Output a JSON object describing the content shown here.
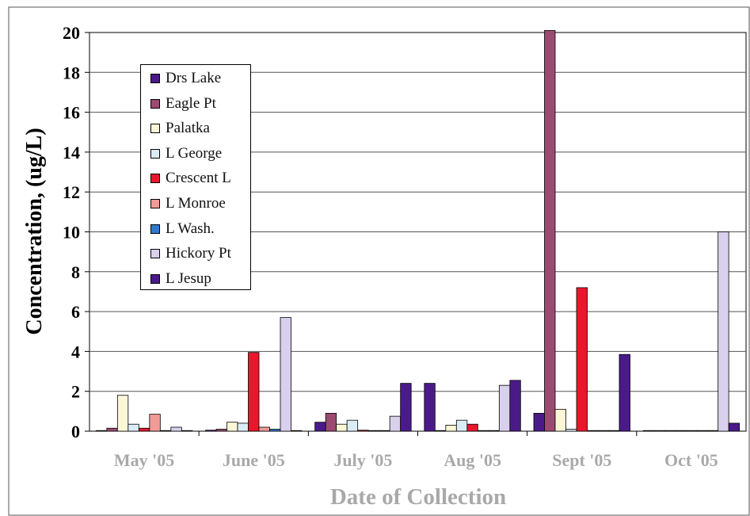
{
  "chart_data": {
    "type": "bar",
    "title": "",
    "xlabel": "Date of Collection",
    "ylabel": "Concentration, (ug/L)",
    "ylim": [
      0,
      20
    ],
    "yticks": [
      "0",
      "2",
      "4",
      "6",
      "8",
      "10",
      "12",
      "14",
      "16",
      "18",
      "20"
    ],
    "grid": true,
    "legend_position": "top-left",
    "categories": [
      "May '05",
      "June '05",
      "July '05",
      "Aug '05",
      "Sept '05",
      "Oct '05"
    ],
    "series": [
      {
        "name": "Drs Lake",
        "color": "#4b1a8a",
        "values": [
          0,
          0.05,
          0.45,
          2.4,
          0.9,
          0
        ]
      },
      {
        "name": "Eagle Pt",
        "color": "#9c4a72",
        "values": [
          0.15,
          0.1,
          0.9,
          0,
          20.1,
          0
        ]
      },
      {
        "name": "Palatka",
        "color": "#fbf6d5",
        "values": [
          1.8,
          0.45,
          0.35,
          0.3,
          1.1,
          0
        ]
      },
      {
        "name": "L George",
        "color": "#dcecf7",
        "values": [
          0.35,
          0.4,
          0.55,
          0.55,
          0.1,
          0
        ]
      },
      {
        "name": "Crescent L",
        "color": "#e8182c",
        "values": [
          0.15,
          3.95,
          0.05,
          0.35,
          7.2,
          0
        ]
      },
      {
        "name": "L Monroe",
        "color": "#f29a96",
        "values": [
          0.85,
          0.2,
          0,
          0,
          0,
          0
        ]
      },
      {
        "name": "L Wash.",
        "color": "#2f7ad1",
        "values": [
          0,
          0.1,
          0,
          0,
          0,
          0
        ]
      },
      {
        "name": "Hickory Pt",
        "color": "#d8d0ec",
        "values": [
          0.2,
          5.7,
          0.75,
          2.3,
          0,
          10.0
        ]
      },
      {
        "name": "L Jesup",
        "color": "#4b1a8a",
        "values": [
          0,
          0,
          2.4,
          2.55,
          3.85,
          0.4
        ]
      }
    ]
  }
}
